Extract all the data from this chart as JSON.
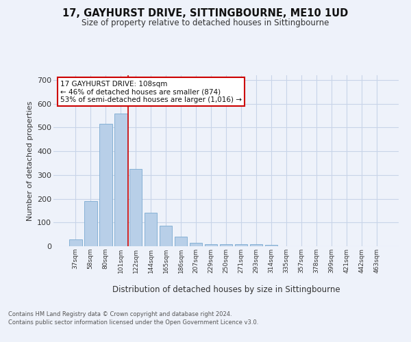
{
  "title1": "17, GAYHURST DRIVE, SITTINGBOURNE, ME10 1UD",
  "title2": "Size of property relative to detached houses in Sittingbourne",
  "xlabel": "Distribution of detached houses by size in Sittingbourne",
  "ylabel": "Number of detached properties",
  "categories": [
    "37sqm",
    "58sqm",
    "80sqm",
    "101sqm",
    "122sqm",
    "144sqm",
    "165sqm",
    "186sqm",
    "207sqm",
    "229sqm",
    "250sqm",
    "271sqm",
    "293sqm",
    "314sqm",
    "335sqm",
    "357sqm",
    "378sqm",
    "399sqm",
    "421sqm",
    "442sqm",
    "463sqm"
  ],
  "values": [
    30,
    190,
    515,
    560,
    325,
    142,
    86,
    40,
    14,
    9,
    10,
    10,
    10,
    6,
    0,
    0,
    0,
    0,
    0,
    0,
    0
  ],
  "bar_color": "#b8cfe8",
  "bar_edge_color": "#7aaad0",
  "grid_color": "#c8d4e8",
  "bg_color": "#eef2fa",
  "annotation_box_color": "#ffffff",
  "annotation_border_color": "#cc0000",
  "red_line_x": 3.5,
  "annotation_text_line1": "17 GAYHURST DRIVE: 108sqm",
  "annotation_text_line2": "← 46% of detached houses are smaller (874)",
  "annotation_text_line3": "53% of semi-detached houses are larger (1,016) →",
  "footnote1": "Contains HM Land Registry data © Crown copyright and database right 2024.",
  "footnote2": "Contains public sector information licensed under the Open Government Licence v3.0.",
  "ylim": [
    0,
    720
  ],
  "yticks": [
    0,
    100,
    200,
    300,
    400,
    500,
    600,
    700
  ]
}
